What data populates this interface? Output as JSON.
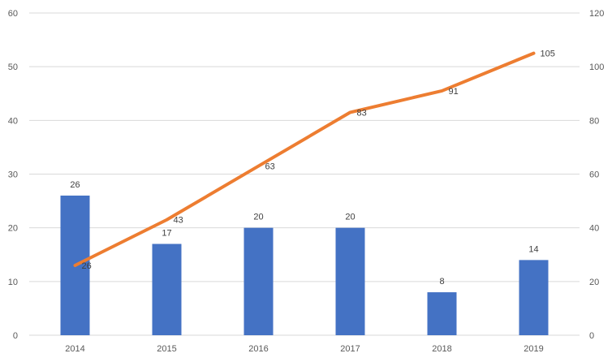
{
  "chart_data": {
    "type": "bar+line",
    "categories": [
      "2014",
      "2015",
      "2016",
      "2017",
      "2018",
      "2019"
    ],
    "series": [
      {
        "type": "bar",
        "axis": "left",
        "color": "#4472C4",
        "values": [
          26,
          17,
          20,
          20,
          8,
          14
        ]
      },
      {
        "type": "line",
        "axis": "right",
        "color": "#ED7D31",
        "values": [
          26,
          43,
          63,
          83,
          91,
          105
        ]
      }
    ],
    "y_left": {
      "ylim": [
        0,
        60
      ],
      "ticks": [
        0,
        10,
        20,
        30,
        40,
        50,
        60
      ]
    },
    "y_right": {
      "ylim": [
        0,
        120
      ],
      "ticks": [
        0,
        20,
        40,
        60,
        80,
        100,
        120
      ]
    },
    "grid": true,
    "grid_color": "#D9D9D9",
    "axis_text_color": "#595959",
    "data_labels": true,
    "legend": "none"
  }
}
